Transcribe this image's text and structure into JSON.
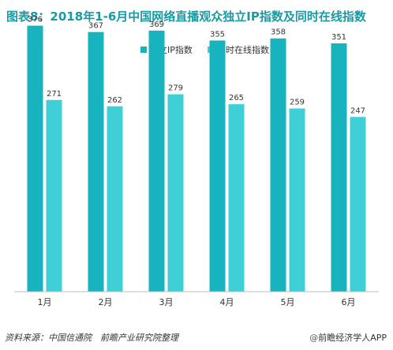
{
  "title": "图表8：2018年1-6月中国网络直播观众独立IP指数及同时在线指数",
  "footer": {
    "source": "资料来源：中国信通院　前瞻产业研究院整理",
    "brand_mark": "@",
    "brand": "前瞻经济学人APP"
  },
  "colors": {
    "series1": "#17b3bf",
    "series2": "#3fcfd6",
    "title": "#1a9aa5",
    "axis": "#bfbfbf"
  },
  "chart_data": {
    "type": "bar",
    "title": "图表8：2018年1-6月中国网络直播观众独立IP指数及同时在线指数",
    "categories": [
      "1月",
      "2月",
      "3月",
      "4月",
      "5月",
      "6月"
    ],
    "series": [
      {
        "name": "独立IP指数",
        "values": [
          376,
          367,
          369,
          355,
          358,
          351
        ]
      },
      {
        "name": "同时在线指数",
        "values": [
          271,
          262,
          279,
          265,
          259,
          247
        ]
      }
    ],
    "ylim": [
      0,
      390
    ],
    "grid": false,
    "legend": "top-center",
    "xlabel": "",
    "ylabel": ""
  }
}
